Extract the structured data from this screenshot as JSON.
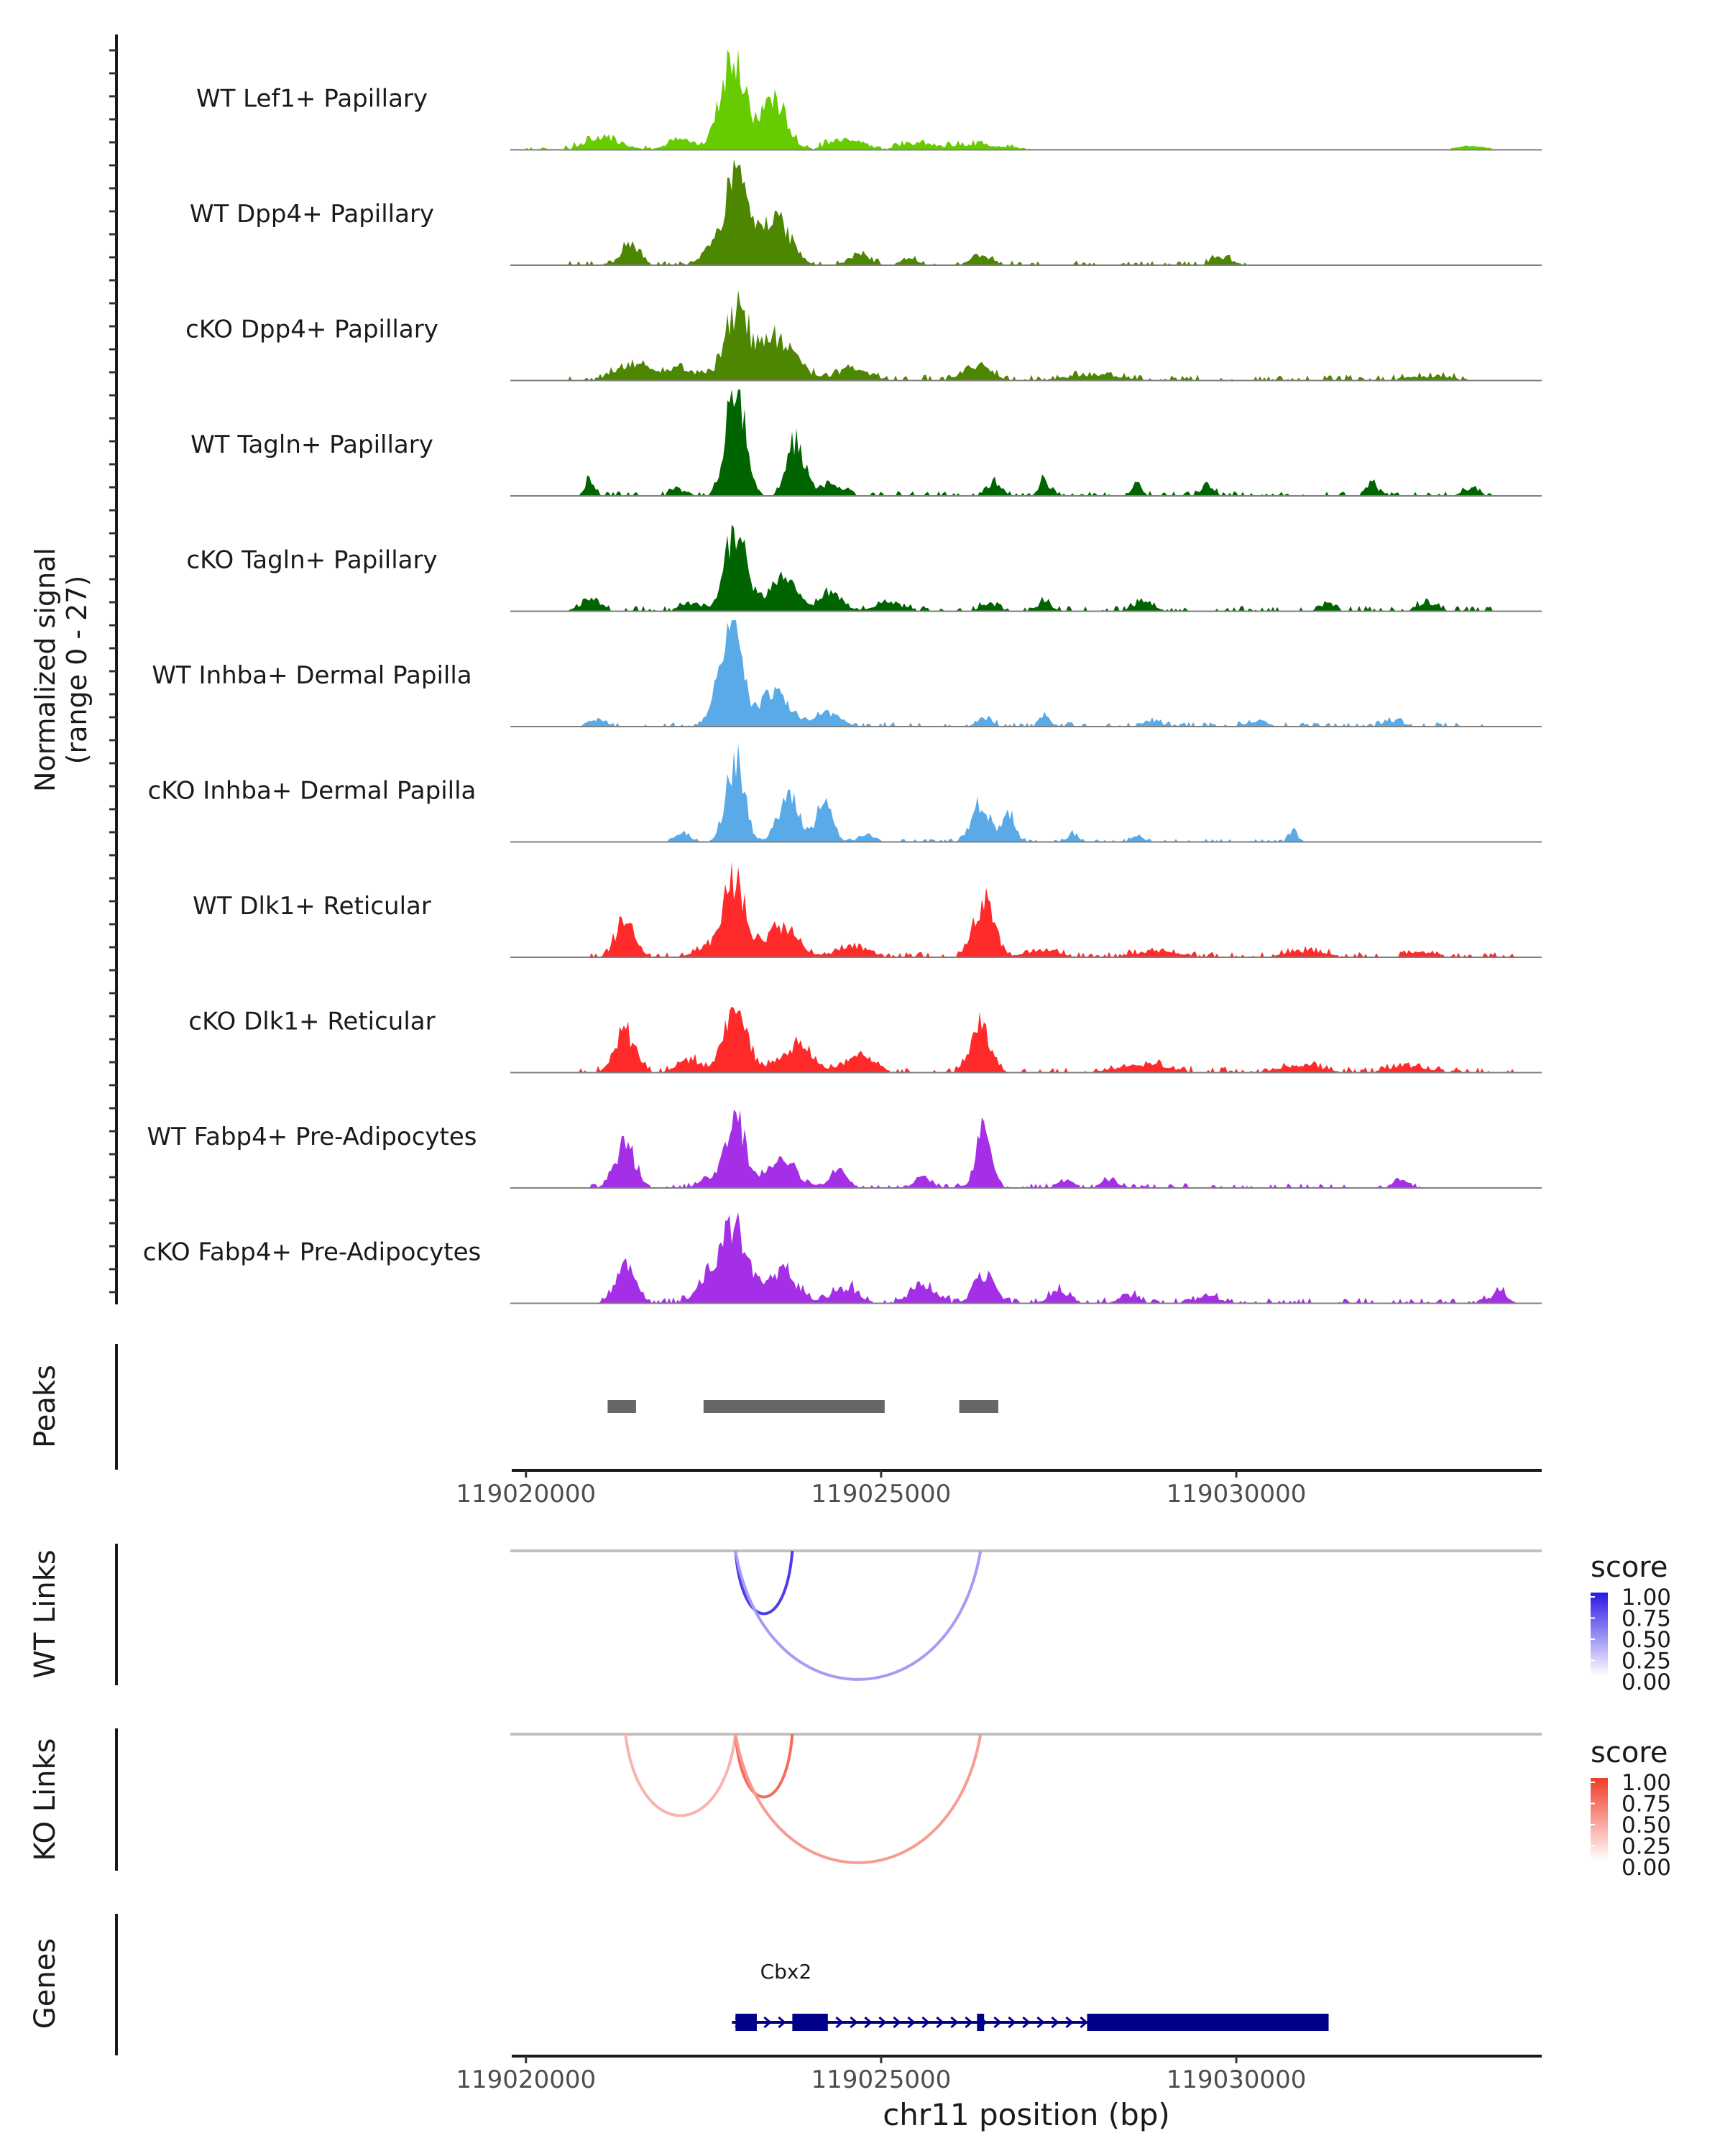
{
  "chart_data": {
    "type": "area",
    "title": "",
    "region": {
      "chrom": "chr11",
      "start": 119019800,
      "end": 119034300
    },
    "y_axis_label_line1": "Normalized signal",
    "y_axis_label_line2": "(range 0 - 27)",
    "y_range": [
      0,
      27
    ],
    "tracks": [
      {
        "name": "WT Lef1+ Papillary",
        "color": "#66cc00",
        "peaks": [
          [
            119021100,
            3,
            350
          ],
          [
            119022200,
            2,
            300
          ],
          [
            119022900,
            24,
            230
          ],
          [
            119023480,
            13,
            260
          ],
          [
            119024500,
            3,
            300
          ],
          [
            119025500,
            1.5,
            350
          ],
          [
            119026400,
            1.2,
            600
          ],
          [
            119033300,
            1,
            300
          ]
        ],
        "noise": 1.3,
        "noise_range": [
          119020000,
          119027000
        ]
      },
      {
        "name": "WT Dpp4+ Papillary",
        "color": "#4d8600",
        "peaks": [
          [
            119021480,
            6,
            160
          ],
          [
            119022600,
            3,
            250
          ],
          [
            119022950,
            24,
            210
          ],
          [
            119023500,
            12,
            300
          ],
          [
            119024700,
            3,
            200
          ],
          [
            119025400,
            2,
            150
          ],
          [
            119026400,
            2.5,
            200
          ],
          [
            119029800,
            2,
            200
          ]
        ],
        "noise": 1.2,
        "noise_range": [
          119020500,
          119030200
        ]
      },
      {
        "name": "cKO Dpp4+ Papillary",
        "color": "#4d8600",
        "peaks": [
          [
            119021500,
            4,
            350
          ],
          [
            119022200,
            3,
            300
          ],
          [
            119022950,
            16,
            230
          ],
          [
            119023500,
            10,
            400
          ],
          [
            119024600,
            3,
            300
          ],
          [
            119026350,
            4,
            250
          ],
          [
            119028000,
            1.5,
            500
          ],
          [
            119032700,
            1,
            500
          ]
        ],
        "noise": 1.5,
        "noise_range": [
          119020400,
          119033300
        ]
      },
      {
        "name": "WT Tagln+ Papillary",
        "color": "#006400",
        "peaks": [
          [
            119020900,
            4,
            100
          ],
          [
            119022100,
            2,
            120
          ],
          [
            119022950,
            27,
            190
          ],
          [
            119023800,
            14,
            170
          ],
          [
            119024300,
            3,
            200
          ],
          [
            119026600,
            3,
            150
          ],
          [
            119027300,
            4,
            100
          ],
          [
            119028600,
            3,
            100
          ],
          [
            119029600,
            3,
            120
          ],
          [
            119031900,
            3,
            120
          ],
          [
            119033300,
            2,
            150
          ]
        ],
        "noise": 1.2,
        "noise_range": [
          119020800,
          119033600
        ]
      },
      {
        "name": "cKO Tagln+ Papillary",
        "color": "#006400",
        "peaks": [
          [
            119020900,
            3,
            200
          ],
          [
            119022300,
            2,
            200
          ],
          [
            119022950,
            22,
            200
          ],
          [
            119023600,
            8,
            300
          ],
          [
            119024300,
            5,
            200
          ],
          [
            119025100,
            2,
            300
          ],
          [
            119026500,
            2,
            150
          ],
          [
            119027300,
            2,
            150
          ],
          [
            119028700,
            2,
            200
          ],
          [
            119031300,
            2,
            150
          ],
          [
            119032700,
            2,
            200
          ]
        ],
        "noise": 1.4,
        "noise_range": [
          119020700,
          119033700
        ]
      },
      {
        "name": "WT Inhba+ Dermal Papilla",
        "color": "#5aaae8",
        "peaks": [
          [
            119021000,
            2,
            150
          ],
          [
            119022800,
            14,
            210
          ],
          [
            119022950,
            21,
            150
          ],
          [
            119023500,
            9,
            300
          ],
          [
            119024250,
            3,
            250
          ],
          [
            119026450,
            2,
            150
          ],
          [
            119027300,
            3,
            100
          ],
          [
            119028800,
            1.5,
            200
          ],
          [
            119030300,
            1.5,
            200
          ],
          [
            119032200,
            1.5,
            200
          ]
        ],
        "noise": 1.2,
        "noise_range": [
          119020600,
          119033500
        ]
      },
      {
        "name": "cKO Inhba+ Dermal Papilla",
        "color": "#5aaae8",
        "peaks": [
          [
            119022200,
            2,
            150
          ],
          [
            119022950,
            20,
            180
          ],
          [
            119023700,
            12,
            200
          ],
          [
            119024200,
            9,
            160
          ],
          [
            119024800,
            2,
            150
          ],
          [
            119026400,
            10,
            180
          ],
          [
            119026800,
            7,
            120
          ],
          [
            119027700,
            2,
            100
          ],
          [
            119028600,
            2,
            100
          ],
          [
            119030800,
            3,
            80
          ]
        ],
        "noise": 0.8,
        "noise_range": [
          119022000,
          119031000
        ]
      },
      {
        "name": "WT Dlk1+ Reticular",
        "color": "#ff2a2a",
        "peaks": [
          [
            119021400,
            10,
            180
          ],
          [
            119022600,
            3,
            250
          ],
          [
            119022950,
            20,
            210
          ],
          [
            119023600,
            8,
            300
          ],
          [
            119024600,
            3,
            300
          ],
          [
            119026450,
            14,
            200
          ],
          [
            119027300,
            2,
            300
          ],
          [
            119028900,
            1.5,
            400
          ],
          [
            119031000,
            1.5,
            400
          ],
          [
            119032600,
            1.2,
            300
          ]
        ],
        "noise": 1.3,
        "noise_range": [
          119020700,
          119033900
        ]
      },
      {
        "name": "cKO Dlk1+ Reticular",
        "color": "#ff2a2a",
        "peaks": [
          [
            119021400,
            10,
            200
          ],
          [
            119022300,
            3,
            250
          ],
          [
            119022950,
            16,
            230
          ],
          [
            119023800,
            7,
            300
          ],
          [
            119024700,
            4,
            300
          ],
          [
            119026400,
            12,
            200
          ],
          [
            119028700,
            2,
            500
          ],
          [
            119030900,
            2,
            400
          ],
          [
            119032400,
            1.5,
            400
          ]
        ],
        "noise": 1.5,
        "noise_range": [
          119020700,
          119033900
        ]
      },
      {
        "name": "WT Fabp4+ Pre-Adipocytes",
        "color": "#a52fe6",
        "peaks": [
          [
            119021400,
            11,
            200
          ],
          [
            119022600,
            3,
            200
          ],
          [
            119022950,
            20,
            170
          ],
          [
            119023600,
            7,
            300
          ],
          [
            119024400,
            5,
            150
          ],
          [
            119025600,
            3,
            150
          ],
          [
            119026450,
            17,
            150
          ],
          [
            119027600,
            2,
            150
          ],
          [
            119028200,
            2,
            150
          ],
          [
            119032300,
            2,
            150
          ]
        ],
        "noise": 1.2,
        "noise_range": [
          119020800,
          119032600
        ]
      },
      {
        "name": "cKO Fabp4+ Pre-Adipocytes",
        "color": "#a52fe6",
        "peaks": [
          [
            119021400,
            9,
            200
          ],
          [
            119022600,
            7,
            250
          ],
          [
            119022950,
            19,
            230
          ],
          [
            119023600,
            8,
            300
          ],
          [
            119024500,
            4,
            250
          ],
          [
            119025600,
            5,
            250
          ],
          [
            119026450,
            7,
            200
          ],
          [
            119027500,
            3,
            200
          ],
          [
            119028500,
            2,
            200
          ],
          [
            119029600,
            2,
            200
          ],
          [
            119033700,
            3,
            150
          ]
        ],
        "noise": 1.5,
        "noise_range": [
          119021000,
          119033800
        ]
      }
    ],
    "peaks_label": "Peaks",
    "peak_regions": [
      [
        119021150,
        119021550
      ],
      [
        119022500,
        119025050
      ],
      [
        119026100,
        119026650
      ]
    ],
    "x_ticks": [
      119020000,
      119025000,
      119030000
    ],
    "x_tick_labels": [
      "119020000",
      "119025000",
      "119030000"
    ],
    "x_axis_label": "chr11 position (bp)",
    "wt_links_label": "WT Links",
    "ko_links_label": "KO Links",
    "wt_links": [
      {
        "start": 119022950,
        "end": 119023750,
        "score": 0.8
      },
      {
        "start": 119022950,
        "end": 119026400,
        "score": 0.3
      }
    ],
    "ko_links": [
      {
        "start": 119021400,
        "end": 119022950,
        "score": 0.25
      },
      {
        "start": 119022950,
        "end": 119023750,
        "score": 0.7
      },
      {
        "start": 119022950,
        "end": 119026400,
        "score": 0.4
      }
    ],
    "link_colors": {
      "wt_high": "#2b17e6",
      "ko_high": "#f03c28",
      "low": "#ffffff"
    },
    "legend_wt": {
      "title": "score",
      "ticks": [
        "1.00",
        "0.75",
        "0.50",
        "0.25",
        "0.00"
      ]
    },
    "legend_ko": {
      "title": "score",
      "ticks": [
        "1.00",
        "0.75",
        "0.50",
        "0.25",
        "0.00"
      ]
    },
    "genes_label": "Genes",
    "gene": {
      "name": "Cbx2",
      "color": "#00008b",
      "start": 119022900,
      "end": 119031300,
      "exons": [
        [
          119022950,
          119023250
        ],
        [
          119023750,
          119024250
        ],
        [
          119026350,
          119026450
        ],
        [
          119027900,
          119031300
        ]
      ]
    }
  }
}
